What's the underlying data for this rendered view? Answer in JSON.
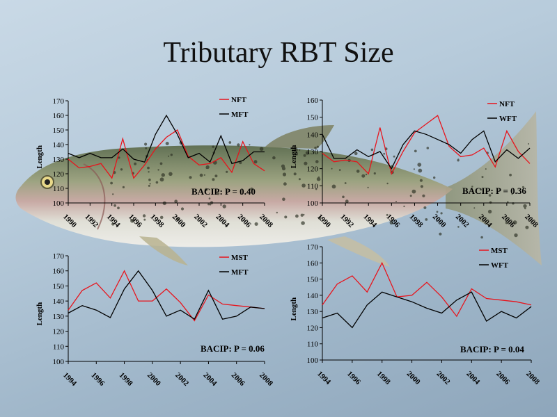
{
  "slide": {
    "title": "Tributary RBT Size"
  },
  "colors": {
    "red_series": "#e8141c",
    "black_series": "#000000",
    "axis": "#000000"
  },
  "chart_data": [
    {
      "type": "line",
      "ylabel": "Length",
      "ylim": [
        100,
        170
      ],
      "yticks": [
        100,
        110,
        120,
        130,
        140,
        150,
        160,
        170
      ],
      "x": [
        1990,
        1991,
        1992,
        1993,
        1994,
        1995,
        1996,
        1997,
        1998,
        1999,
        2000,
        2001,
        2002,
        2003,
        2004,
        2005,
        2006,
        2007,
        2008
      ],
      "xticks": [
        "1990",
        "1992",
        "1994",
        "1996",
        "1998",
        "2000",
        "2002",
        "2004",
        "2006",
        "2008"
      ],
      "series": [
        {
          "name": "NFT",
          "color": "#e8141c",
          "values": [
            130,
            124,
            125,
            127,
            117,
            144,
            117,
            126,
            137,
            145,
            150,
            132,
            126,
            127,
            131,
            121,
            142,
            127,
            122
          ]
        },
        {
          "name": "MFT",
          "color": "#000000",
          "values": [
            134,
            131,
            134,
            131,
            131,
            137,
            130,
            128,
            147,
            160,
            147,
            131,
            134,
            128,
            146,
            127,
            129,
            135,
            135
          ]
        }
      ],
      "annotation": "BACIP: P = 0.40",
      "legend_position": "top-right",
      "grid": false
    },
    {
      "type": "line",
      "ylabel": "Length",
      "ylim": [
        100,
        160
      ],
      "yticks": [
        100,
        110,
        120,
        130,
        140,
        150,
        160
      ],
      "x": [
        1990,
        1991,
        1992,
        1993,
        1994,
        1995,
        1996,
        1997,
        1998,
        1999,
        2000,
        2001,
        2002,
        2003,
        2004,
        2005,
        2006,
        2007,
        2008
      ],
      "xticks": [
        "1990",
        "1992",
        "1994",
        "1996",
        "1998",
        "2000",
        "2002",
        "2004",
        "2006",
        "2008"
      ],
      "series": [
        {
          "name": "NFT",
          "color": "#e8141c",
          "values": [
            129,
            124,
            125,
            124,
            117,
            144,
            117,
            130,
            141,
            146,
            151,
            133,
            127,
            128,
            132,
            121,
            142,
            130,
            123
          ]
        },
        {
          "name": "WFT",
          "color": "#000000",
          "values": [
            140,
            126,
            126,
            131,
            127,
            130,
            120,
            134,
            142,
            140,
            137,
            134,
            129,
            137,
            142,
            124,
            131,
            126,
            132
          ]
        }
      ],
      "annotation": "BACIP: P = 0.36",
      "legend_position": "top-right",
      "grid": false
    },
    {
      "type": "line",
      "ylabel": "Length",
      "ylim": [
        100,
        170
      ],
      "yticks": [
        100,
        110,
        120,
        130,
        140,
        150,
        160,
        170
      ],
      "x": [
        1994,
        1995,
        1996,
        1997,
        1998,
        1999,
        2000,
        2001,
        2002,
        2003,
        2004,
        2005,
        2006,
        2007,
        2008
      ],
      "xticks": [
        "1994",
        "1996",
        "1998",
        "2000",
        "2002",
        "2004",
        "2006",
        "2008"
      ],
      "series": [
        {
          "name": "MST",
          "color": "#e8141c",
          "values": [
            134,
            147,
            152,
            142,
            160,
            140,
            140,
            148,
            139,
            127,
            144,
            138,
            137,
            136,
            135
          ]
        },
        {
          "name": "MFT",
          "color": "#000000",
          "values": [
            132,
            137,
            134,
            129,
            148,
            160,
            147,
            130,
            134,
            128,
            147,
            128,
            130,
            136,
            135
          ]
        }
      ],
      "annotation": "BACIP: P = 0.06",
      "legend_position": "top-right",
      "grid": false
    },
    {
      "type": "line",
      "ylabel": "Length",
      "ylim": [
        100,
        170
      ],
      "yticks": [
        100,
        110,
        120,
        130,
        140,
        150,
        160,
        170
      ],
      "x": [
        1994,
        1995,
        1996,
        1997,
        1998,
        1999,
        2000,
        2001,
        2002,
        2003,
        2004,
        2005,
        2006,
        2007,
        2008
      ],
      "xticks": [
        "1994",
        "1996",
        "1998",
        "2000",
        "2002",
        "2004",
        "2006",
        "2008"
      ],
      "series": [
        {
          "name": "MST",
          "color": "#e8141c",
          "values": [
            134,
            147,
            152,
            142,
            160,
            139,
            140,
            148,
            139,
            127,
            144,
            138,
            137,
            136,
            134
          ]
        },
        {
          "name": "WFT",
          "color": "#000000",
          "values": [
            126,
            129,
            120,
            134,
            142,
            139,
            136,
            132,
            129,
            137,
            142,
            124,
            130,
            126,
            133
          ]
        }
      ],
      "annotation": "BACIP: P = 0.04",
      "legend_position": "top-right",
      "grid": false
    }
  ]
}
